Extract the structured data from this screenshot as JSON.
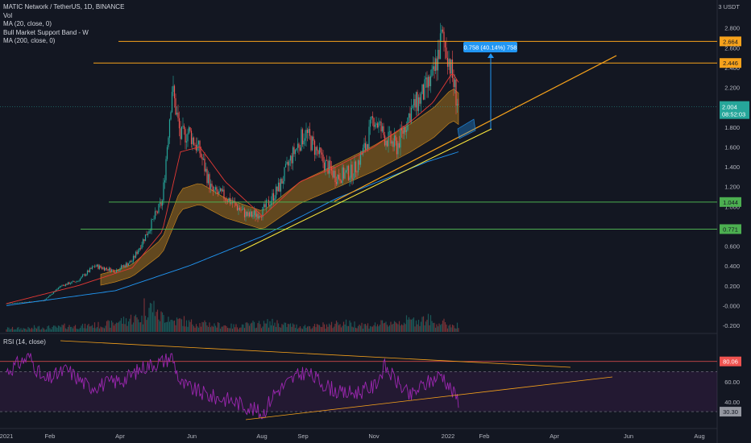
{
  "legend": {
    "symbol": "MATIC Network / TetherUS, 1D, BINANCE",
    "vol": "Vol",
    "ma20": "MA (20, close, 0)",
    "bmsb": "Bull Market Support Band - W",
    "ma200": "MA (200, close, 0)",
    "rsi": "RSI (14, close)"
  },
  "currency": "3 USDT",
  "colors": {
    "background": "#131722",
    "up": "#26a69a",
    "down": "#ef5350",
    "orange": "#f7a21b",
    "ma20": "#e53935",
    "ma200": "#2196f3",
    "rsi": "#9c27b0",
    "band": "#f7a21b",
    "green_line": "#4caf50",
    "measure": "#2196f3"
  },
  "price_ticks": [
    "2.800",
    "2.600",
    "2.400",
    "2.200",
    "2.000",
    "1.800",
    "1.600",
    "1.400",
    "1.200",
    "1.000",
    "0.800",
    "0.600",
    "0.400",
    "0.200",
    "-0.000",
    "-0.200"
  ],
  "time_ticks": [
    "2021",
    "Feb",
    "Apr",
    "Jun",
    "Aug",
    "Sep",
    "Nov",
    "2022",
    "Feb",
    "Apr",
    "Jun",
    "Aug"
  ],
  "rsi_ticks": [
    "60.00",
    "40.00"
  ],
  "badges": {
    "level_2664": "2.664",
    "level_2446": "2.446",
    "current_price": "2.004",
    "countdown": "08:52:03",
    "level_1044": "1.044",
    "level_0771": "0.771",
    "rsi_80": "80.06",
    "rsi_30": "30.30"
  },
  "measure_label": "0.758 (40.14%) 758",
  "chart_data": [
    {
      "type": "candlestick",
      "title": "MATIC Network / TetherUS, 1D, BINANCE",
      "x_range": [
        "2021-01-01",
        "2022-08-31"
      ],
      "ylim": [
        -0.2,
        3.0
      ],
      "horizontal_levels": [
        2.664,
        2.446,
        1.044,
        0.771
      ],
      "last_price": 2.004,
      "close_series": {
        "dates": [
          "2021-01-01",
          "2021-02-01",
          "2021-02-15",
          "2021-03-01",
          "2021-03-15",
          "2021-04-01",
          "2021-04-15",
          "2021-04-28",
          "2021-05-10",
          "2021-05-18",
          "2021-05-25",
          "2021-06-01",
          "2021-06-10",
          "2021-06-20",
          "2021-07-01",
          "2021-07-20",
          "2021-08-01",
          "2021-08-15",
          "2021-08-25",
          "2021-09-05",
          "2021-09-20",
          "2021-10-01",
          "2021-10-15",
          "2021-10-25",
          "2021-11-01",
          "2021-11-10",
          "2021-11-20",
          "2021-12-01",
          "2021-12-10",
          "2021-12-20",
          "2021-12-27",
          "2022-01-01",
          "2022-01-05",
          "2022-01-10"
        ],
        "close": [
          0.02,
          0.05,
          0.2,
          0.25,
          0.4,
          0.35,
          0.45,
          0.75,
          1.05,
          2.2,
          1.7,
          1.75,
          1.55,
          1.15,
          1.1,
          0.9,
          0.95,
          1.2,
          1.5,
          1.75,
          1.45,
          1.3,
          1.35,
          1.6,
          1.9,
          1.7,
          1.6,
          1.95,
          2.1,
          2.3,
          2.7,
          2.55,
          2.3,
          2.004
        ]
      },
      "ma20": {
        "dates": [
          "2021-01-01",
          "2021-03-01",
          "2021-04-15",
          "2021-05-10",
          "2021-05-25",
          "2021-06-10",
          "2021-07-01",
          "2021-08-01",
          "2021-09-01",
          "2021-10-01",
          "2021-11-01",
          "2021-12-01",
          "2021-12-20",
          "2022-01-05",
          "2022-01-10"
        ],
        "values": [
          0.02,
          0.2,
          0.38,
          0.75,
          1.55,
          1.6,
          1.25,
          0.9,
          1.25,
          1.4,
          1.6,
          1.85,
          2.05,
          2.35,
          2.25
        ]
      },
      "ma200": {
        "dates": [
          "2021-01-01",
          "2021-04-01",
          "2021-06-01",
          "2021-08-01",
          "2021-10-01",
          "2021-11-15",
          "2021-12-15",
          "2022-01-10"
        ],
        "values": [
          0.0,
          0.15,
          0.4,
          0.7,
          1.08,
          1.3,
          1.45,
          1.55
        ]
      },
      "volume_relative": [
        3,
        3,
        4,
        4,
        5,
        5,
        6,
        7,
        10,
        12,
        22,
        14,
        10,
        8,
        7,
        6,
        5,
        6,
        7,
        8,
        6,
        5,
        5,
        6,
        8,
        7,
        6,
        7,
        9,
        10,
        11,
        8,
        6,
        4
      ]
    },
    {
      "type": "line",
      "title": "RSI (14, close)",
      "ylim": [
        20,
        95
      ],
      "levels": [
        80.06,
        70,
        30.3
      ],
      "dates": [
        "2021-01-01",
        "2021-01-20",
        "2021-02-01",
        "2021-02-20",
        "2021-03-10",
        "2021-03-25",
        "2021-04-10",
        "2021-04-25",
        "2021-05-10",
        "2021-05-18",
        "2021-05-25",
        "2021-06-05",
        "2021-06-20",
        "2021-07-05",
        "2021-07-20",
        "2021-08-01",
        "2021-08-10",
        "2021-08-25",
        "2021-09-05",
        "2021-09-20",
        "2021-10-05",
        "2021-10-20",
        "2021-11-01",
        "2021-11-10",
        "2021-11-20",
        "2021-12-01",
        "2021-12-10",
        "2021-12-20",
        "2021-12-27",
        "2022-01-05",
        "2022-01-10"
      ],
      "values": [
        70,
        85,
        60,
        72,
        55,
        58,
        63,
        75,
        80,
        85,
        58,
        52,
        45,
        42,
        35,
        28,
        48,
        62,
        70,
        58,
        48,
        50,
        55,
        75,
        60,
        45,
        55,
        62,
        68,
        50,
        42
      ]
    }
  ]
}
